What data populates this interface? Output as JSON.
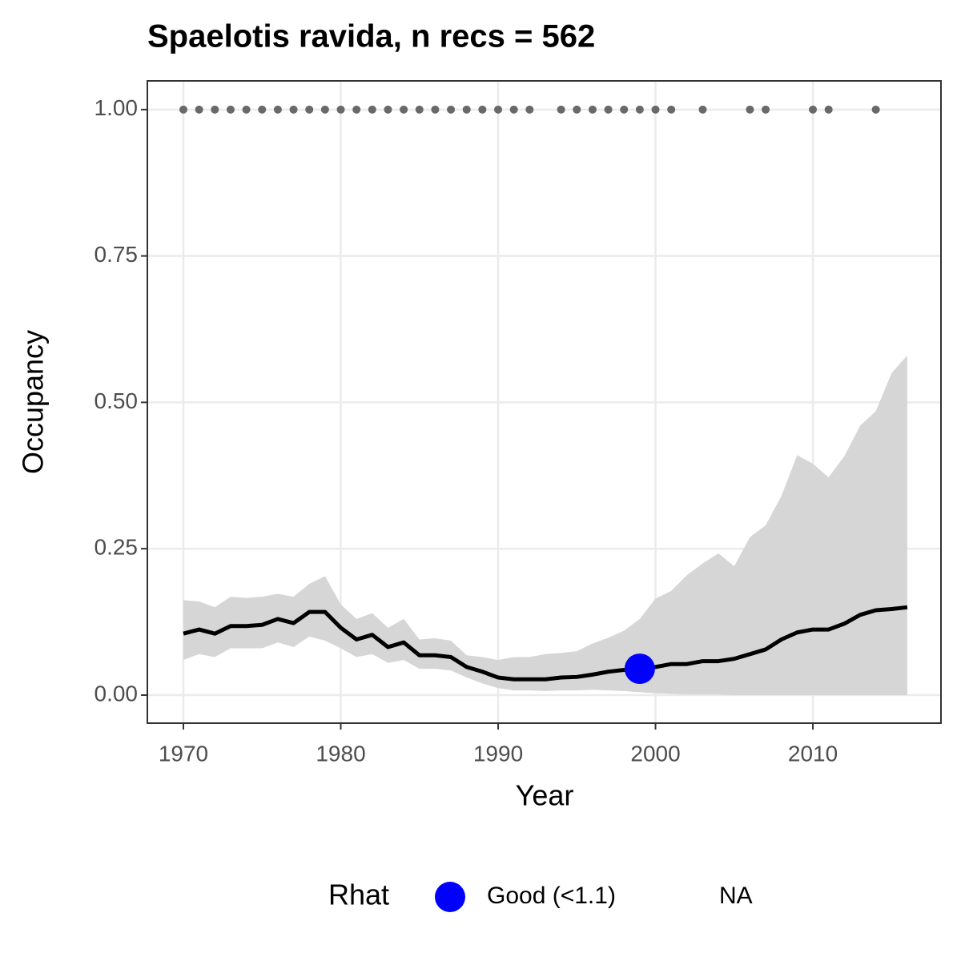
{
  "chart_data": {
    "type": "line",
    "title": "Spaelotis ravida, n recs = 562",
    "xlabel": "Year",
    "ylabel": "Occupancy",
    "xlim": [
      1967.71,
      2018.14
    ],
    "ylim": [
      -0.0479,
      1.049
    ],
    "xticks": [
      1970,
      1980,
      1990,
      2000,
      2010
    ],
    "yticks": [
      {
        "value": 0,
        "label": "0.00"
      },
      {
        "value": 0.25,
        "label": "0.25"
      },
      {
        "value": 0.5,
        "label": "0.50"
      },
      {
        "value": 0.75,
        "label": "0.75"
      },
      {
        "value": 1,
        "label": "1.00"
      }
    ],
    "grid": true,
    "x": [
      1970,
      1971,
      1972,
      1973,
      1974,
      1975,
      1976,
      1977,
      1978,
      1979,
      1980,
      1981,
      1982,
      1983,
      1984,
      1985,
      1986,
      1987,
      1988,
      1989,
      1990,
      1991,
      1992,
      1993,
      1994,
      1995,
      1996,
      1997,
      1998,
      1999,
      2000,
      2001,
      2002,
      2003,
      2004,
      2005,
      2006,
      2007,
      2008,
      2009,
      2010,
      2011,
      2012,
      2013,
      2014,
      2015,
      2016
    ],
    "line": {
      "color": "#000000",
      "values": [
        0.105,
        0.112,
        0.105,
        0.118,
        0.118,
        0.12,
        0.13,
        0.123,
        0.142,
        0.142,
        0.115,
        0.095,
        0.103,
        0.082,
        0.09,
        0.068,
        0.068,
        0.065,
        0.048,
        0.04,
        0.03,
        0.027,
        0.027,
        0.027,
        0.03,
        0.031,
        0.035,
        0.04,
        0.043,
        0.045,
        0.048,
        0.053,
        0.053,
        0.058,
        0.058,
        0.062,
        0.07,
        0.078,
        0.095,
        0.107,
        0.112,
        0.112,
        0.122,
        0.137,
        0.145,
        0.147,
        0.15
      ]
    },
    "band": {
      "color": "#d6d6d6",
      "upper": [
        0.162,
        0.16,
        0.15,
        0.168,
        0.166,
        0.168,
        0.173,
        0.168,
        0.19,
        0.203,
        0.155,
        0.13,
        0.14,
        0.115,
        0.13,
        0.095,
        0.097,
        0.093,
        0.068,
        0.065,
        0.06,
        0.065,
        0.065,
        0.07,
        0.072,
        0.075,
        0.088,
        0.098,
        0.11,
        0.13,
        0.165,
        0.178,
        0.205,
        0.225,
        0.242,
        0.22,
        0.27,
        0.29,
        0.34,
        0.41,
        0.395,
        0.372,
        0.408,
        0.46,
        0.485,
        0.55,
        0.58
      ],
      "lower": [
        0.06,
        0.07,
        0.065,
        0.08,
        0.08,
        0.08,
        0.09,
        0.082,
        0.1,
        0.093,
        0.08,
        0.065,
        0.07,
        0.055,
        0.06,
        0.045,
        0.045,
        0.042,
        0.03,
        0.02,
        0.012,
        0.008,
        0.008,
        0.007,
        0.008,
        0.008,
        0.009,
        0.008,
        0.007,
        0.005,
        0.003,
        0.002,
        0.001,
        0.001,
        0.001,
        0,
        0,
        0,
        0,
        0,
        0,
        0,
        0,
        0,
        0,
        0,
        0
      ]
    },
    "records": {
      "color": "#696969",
      "x": [
        1970,
        1971,
        1972,
        1973,
        1974,
        1975,
        1976,
        1977,
        1978,
        1979,
        1980,
        1981,
        1982,
        1983,
        1984,
        1985,
        1986,
        1987,
        1988,
        1989,
        1990,
        1991,
        1992,
        1994,
        1995,
        1996,
        1997,
        1998,
        1999,
        2000,
        2001,
        2003,
        2006,
        2007,
        2010,
        2011,
        2014
      ],
      "values": [
        1,
        1,
        1,
        1,
        1,
        1,
        1,
        1,
        1,
        1,
        1,
        1,
        1,
        1,
        1,
        1,
        1,
        1,
        1,
        1,
        1,
        1,
        1,
        1,
        1,
        1,
        1,
        1,
        1,
        1,
        1,
        1,
        1,
        1,
        1,
        1,
        1
      ]
    },
    "legend": {
      "title": "Rhat",
      "entries": [
        {
          "label": "Good (<1.1)",
          "color": "#0000ff",
          "x": [
            1999
          ],
          "values": [
            0.045
          ]
        },
        {
          "label": "NA"
        }
      ]
    }
  }
}
